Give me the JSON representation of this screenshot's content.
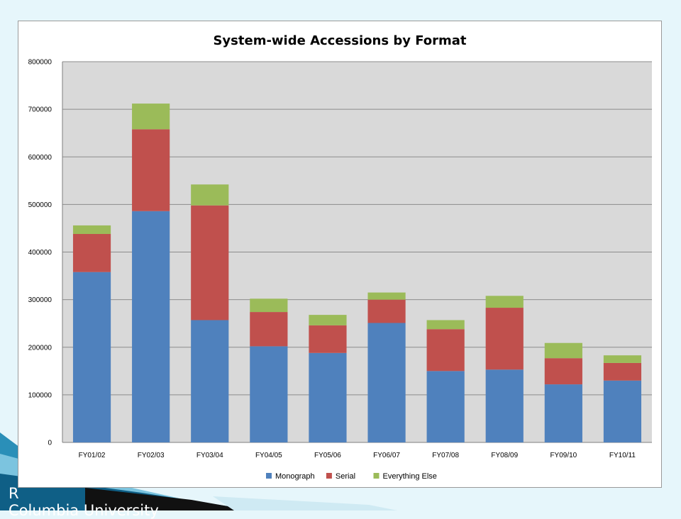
{
  "slide": {
    "footer_text": "Columbia University",
    "footer_partial": "R"
  },
  "colors": {
    "background": "#e6f6fb",
    "plot_area": "#d9d9d9",
    "gridline": "#8c8c8c",
    "monograph": "#4f81bd",
    "serial": "#c0504d",
    "everything_else": "#9bbb59"
  },
  "chart_data": {
    "type": "bar",
    "stacked": true,
    "title": "System-wide Accessions by Format",
    "xlabel": "",
    "ylabel": "",
    "ylim": [
      0,
      800000
    ],
    "yticks": [
      0,
      100000,
      200000,
      300000,
      400000,
      500000,
      600000,
      700000,
      800000
    ],
    "grid": true,
    "legend_position": "bottom",
    "categories": [
      "FY01/02",
      "FY02/03",
      "FY03/04",
      "FY04/05",
      "FY05/06",
      "FY06/07",
      "FY07/08",
      "FY08/09",
      "FY09/10",
      "FY10/11"
    ],
    "series": [
      {
        "name": "Monograph",
        "color": "#4f81bd",
        "values": [
          358000,
          486000,
          257000,
          202000,
          188000,
          251000,
          150000,
          153000,
          122000,
          130000
        ]
      },
      {
        "name": "Serial",
        "color": "#c0504d",
        "values": [
          80000,
          172000,
          241000,
          72000,
          58000,
          49000,
          88000,
          130000,
          55000,
          37000
        ]
      },
      {
        "name": "Everything Else",
        "color": "#9bbb59",
        "values": [
          18000,
          54000,
          44000,
          28000,
          22000,
          15000,
          19000,
          25000,
          32000,
          16000
        ]
      }
    ]
  }
}
